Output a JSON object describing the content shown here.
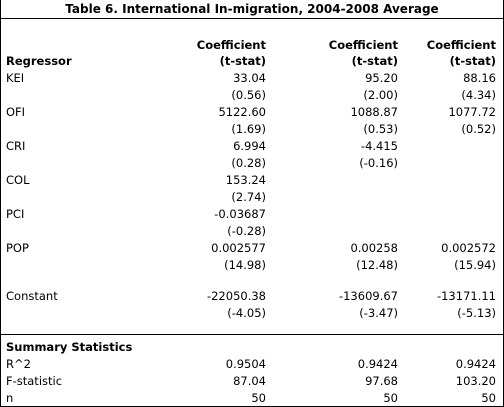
{
  "title": "Table 6. International In-migration, 2004-2008 Average",
  "header": {
    "regressor": "Regressor",
    "columns": [
      {
        "line1": "Coefficient",
        "line2": "(t-stat)"
      },
      {
        "line1": "Coefficient",
        "line2": "(t-stat)"
      },
      {
        "line1": "Coefficient",
        "line2": "(t-stat)"
      }
    ]
  },
  "regressors": [
    {
      "name": "KEI",
      "coef": [
        "33.04",
        "95.20",
        "88.16"
      ],
      "tstat": [
        "(0.56)",
        "(2.00)",
        "(4.34)"
      ]
    },
    {
      "name": "OFI",
      "coef": [
        "5122.60",
        "1088.87",
        "1077.72"
      ],
      "tstat": [
        "(1.69)",
        "(0.53)",
        "(0.52)"
      ]
    },
    {
      "name": "CRI",
      "coef": [
        "6.994",
        "-4.415",
        ""
      ],
      "tstat": [
        "(0.28)",
        "(-0.16)",
        ""
      ]
    },
    {
      "name": "COL",
      "coef": [
        "153.24",
        "",
        ""
      ],
      "tstat": [
        "(2.74)",
        "",
        ""
      ]
    },
    {
      "name": "PCI",
      "coef": [
        "-0.03687",
        "",
        ""
      ],
      "tstat": [
        "(-0.28)",
        "",
        ""
      ]
    },
    {
      "name": "POP",
      "coef": [
        "0.002577",
        "0.00258",
        "0.002572"
      ],
      "tstat": [
        "(14.98)",
        "(12.48)",
        "(15.94)"
      ]
    },
    {
      "name": "Constant",
      "coef": [
        "-22050.38",
        "-13609.67",
        "-13171.11"
      ],
      "tstat": [
        "(-4.05)",
        "(-3.47)",
        "(-5.13)"
      ]
    }
  ],
  "summary": {
    "heading": "Summary Statistics",
    "rows": [
      {
        "name": "R^2",
        "values": [
          "0.9504",
          "0.9424",
          "0.9424"
        ]
      },
      {
        "name": "F-statistic",
        "values": [
          "87.04",
          "97.68",
          "103.20"
        ]
      },
      {
        "name": "n",
        "values": [
          "50",
          "50",
          "50"
        ]
      }
    ]
  }
}
